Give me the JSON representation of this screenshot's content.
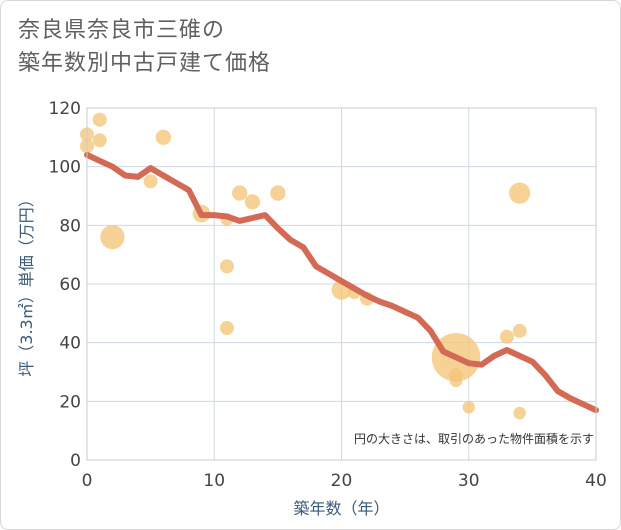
{
  "title_line1": "奈良県奈良市三碓の",
  "title_line2": "築年数別中古戸建て価格",
  "chart_data": {
    "type": "scatter",
    "xlabel": "築年数（年）",
    "ylabel": "坪（3.3㎡）単価（万円）",
    "xlim": [
      0,
      40
    ],
    "ylim": [
      0,
      120
    ],
    "xticks": [
      "0",
      "10",
      "20",
      "30",
      "40"
    ],
    "yticks": [
      "0",
      "20",
      "40",
      "60",
      "80",
      "100",
      "120"
    ],
    "annotation": "円の大きさは、取引のあった物件面積を示す",
    "colors": {
      "bubble": "#f5c57a",
      "line": "#d46a55",
      "grid": "#cfd8e0"
    },
    "points": [
      {
        "x": 0,
        "y": 111,
        "s": 1
      },
      {
        "x": 0,
        "y": 107,
        "s": 1
      },
      {
        "x": 1,
        "y": 116,
        "s": 1
      },
      {
        "x": 1,
        "y": 109,
        "s": 1
      },
      {
        "x": 2,
        "y": 76,
        "s": 3
      },
      {
        "x": 5,
        "y": 95,
        "s": 1
      },
      {
        "x": 6,
        "y": 110,
        "s": 1.2
      },
      {
        "x": 9,
        "y": 84,
        "s": 1.6
      },
      {
        "x": 11,
        "y": 82,
        "s": 0.8
      },
      {
        "x": 11,
        "y": 66,
        "s": 1
      },
      {
        "x": 11,
        "y": 45,
        "s": 1
      },
      {
        "x": 12,
        "y": 91,
        "s": 1.2
      },
      {
        "x": 13,
        "y": 88,
        "s": 1.2
      },
      {
        "x": 15,
        "y": 91,
        "s": 1.2
      },
      {
        "x": 20,
        "y": 58,
        "s": 2
      },
      {
        "x": 21,
        "y": 57,
        "s": 0.8
      },
      {
        "x": 22,
        "y": 55,
        "s": 1
      },
      {
        "x": 29,
        "y": 35,
        "s": 12
      },
      {
        "x": 29,
        "y": 29,
        "s": 1
      },
      {
        "x": 29,
        "y": 27,
        "s": 0.8
      },
      {
        "x": 30,
        "y": 18,
        "s": 0.8
      },
      {
        "x": 33,
        "y": 42,
        "s": 1
      },
      {
        "x": 34,
        "y": 91,
        "s": 2.3
      },
      {
        "x": 34,
        "y": 44,
        "s": 1
      },
      {
        "x": 34,
        "y": 16,
        "s": 0.8
      }
    ],
    "trend": {
      "x": [
        0,
        1,
        2,
        3,
        4,
        5,
        6,
        7,
        8,
        9,
        10,
        11,
        12,
        13,
        14,
        15,
        16,
        17,
        18,
        19,
        20,
        21,
        22,
        23,
        24,
        25,
        26,
        27,
        28,
        29,
        30,
        31,
        32,
        33,
        34,
        35,
        36,
        37,
        38,
        39,
        40
      ],
      "y": [
        104,
        102,
        100,
        97,
        96.5,
        99.5,
        97,
        94.5,
        92,
        83.5,
        83.5,
        83,
        81.5,
        82.5,
        83.5,
        79,
        75,
        72.5,
        66,
        63.5,
        61,
        58.5,
        56,
        54,
        52.5,
        50.5,
        48.5,
        44,
        37,
        35,
        33,
        32.5,
        35.5,
        37.5,
        35.5,
        33.5,
        29,
        23.5,
        21,
        19,
        17
      ]
    }
  }
}
